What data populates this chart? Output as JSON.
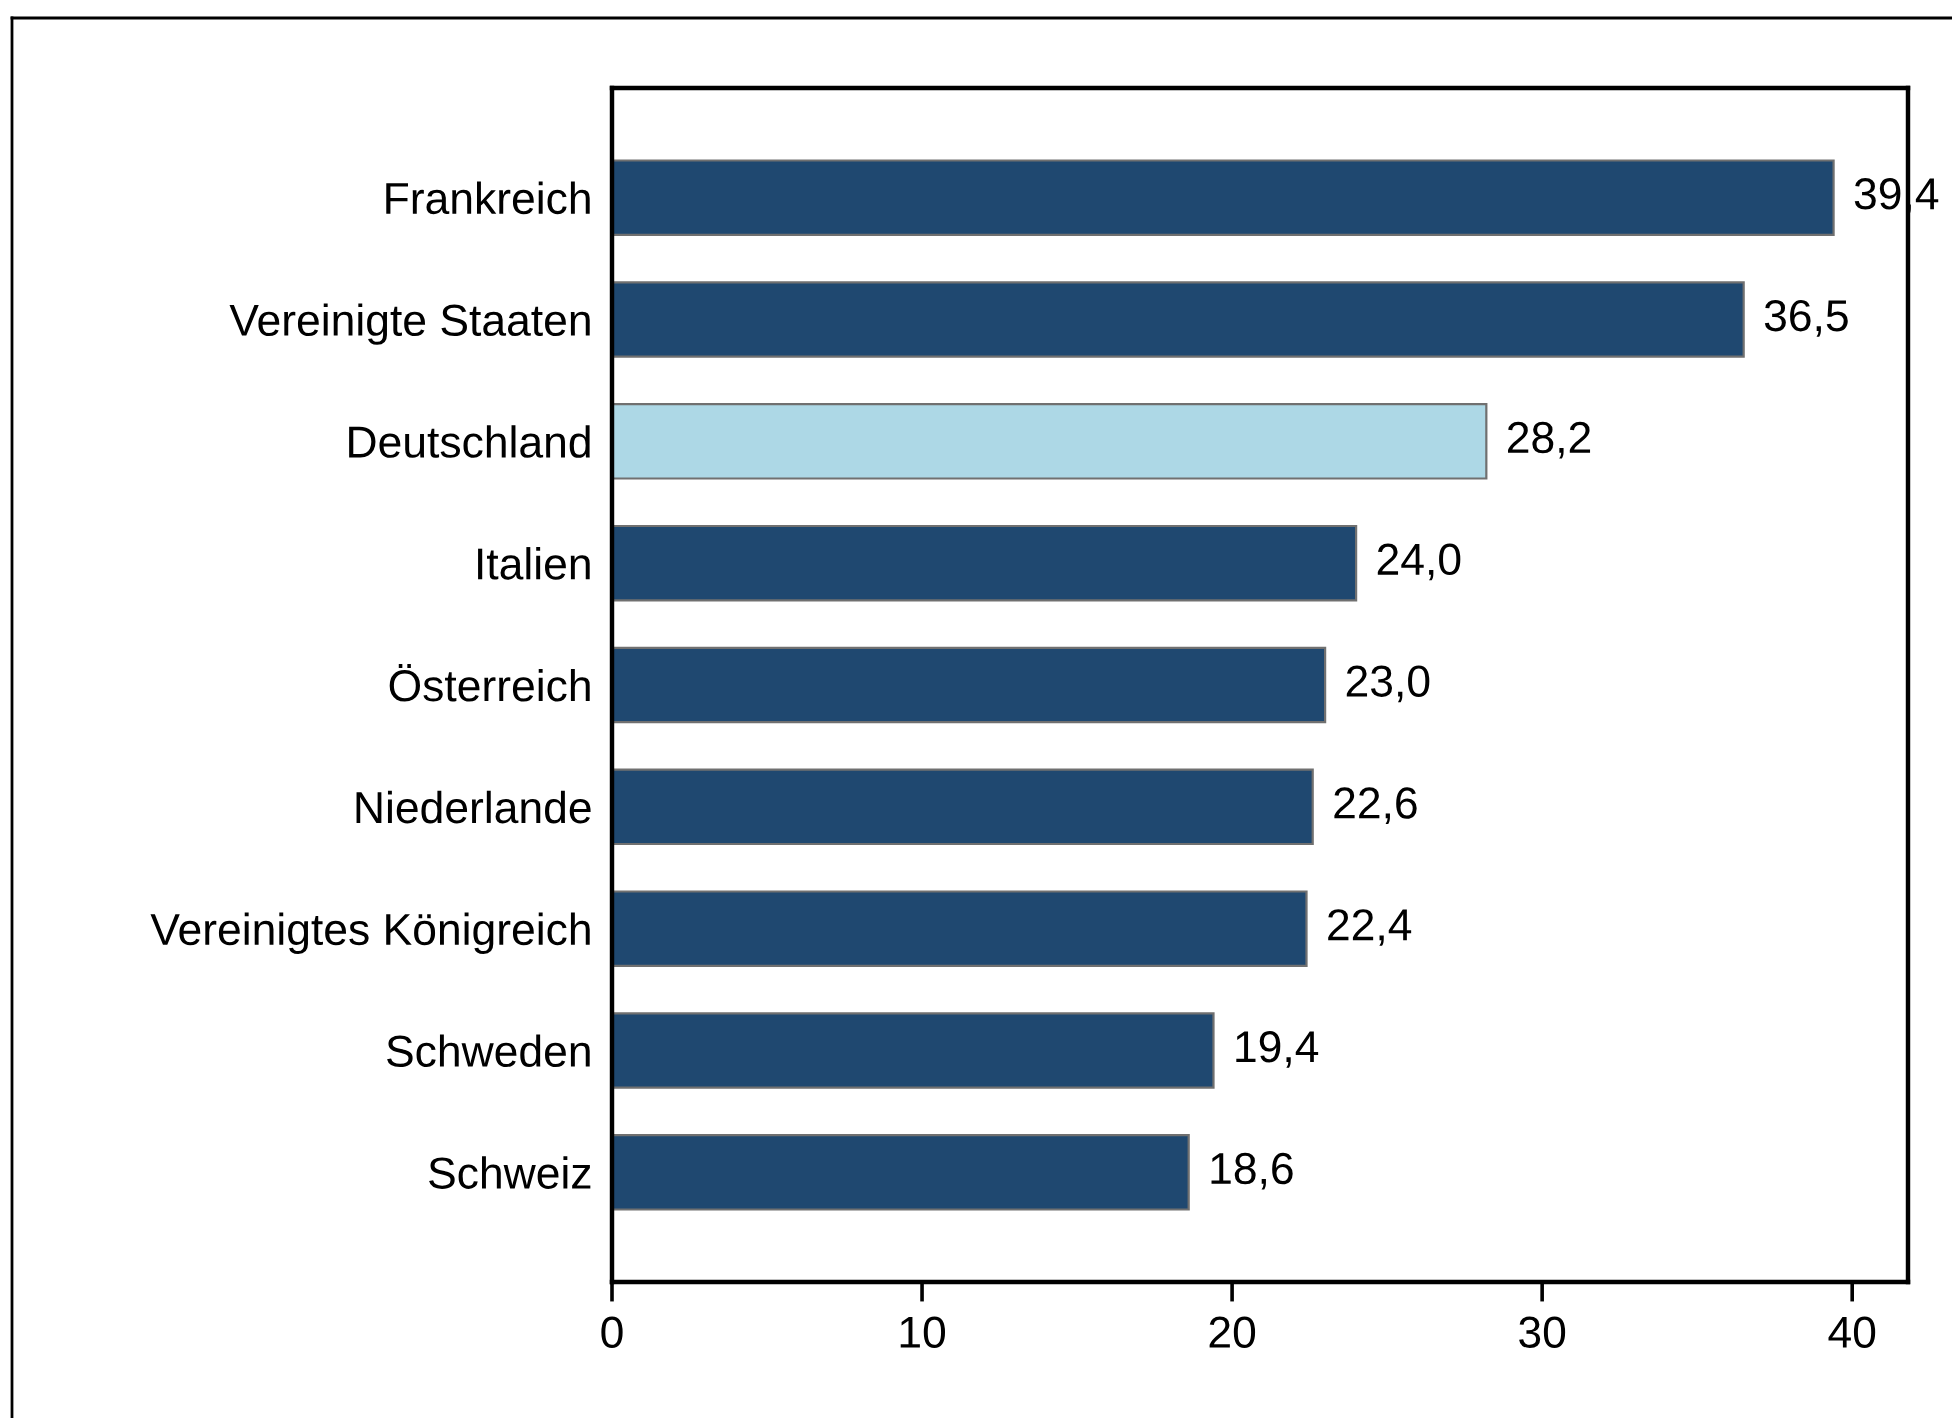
{
  "chart_data": {
    "type": "bar",
    "orientation": "horizontal",
    "categories": [
      "Frankreich",
      "Vereinigte Staaten",
      "Deutschland",
      "Italien",
      "Österreich",
      "Niederlande",
      "Vereinigtes Königreich",
      "Schweden",
      "Schweiz"
    ],
    "values": [
      39.4,
      36.5,
      28.2,
      24.0,
      23.0,
      22.6,
      22.4,
      19.4,
      18.6
    ],
    "colors": [
      "#1f4870",
      "#1f4870",
      "#add8e6",
      "#1f4870",
      "#1f4870",
      "#1f4870",
      "#1f4870",
      "#1f4870",
      "#1f4870"
    ],
    "value_labels": [
      "39,4",
      "36,5",
      "28,2",
      "24,0",
      "23,0",
      "22,6",
      "22,4",
      "19,4",
      "18,6"
    ],
    "xlim": [
      0,
      41.8
    ],
    "xticks": [
      0,
      10,
      20,
      30,
      40
    ],
    "grid": false,
    "legend": false
  }
}
